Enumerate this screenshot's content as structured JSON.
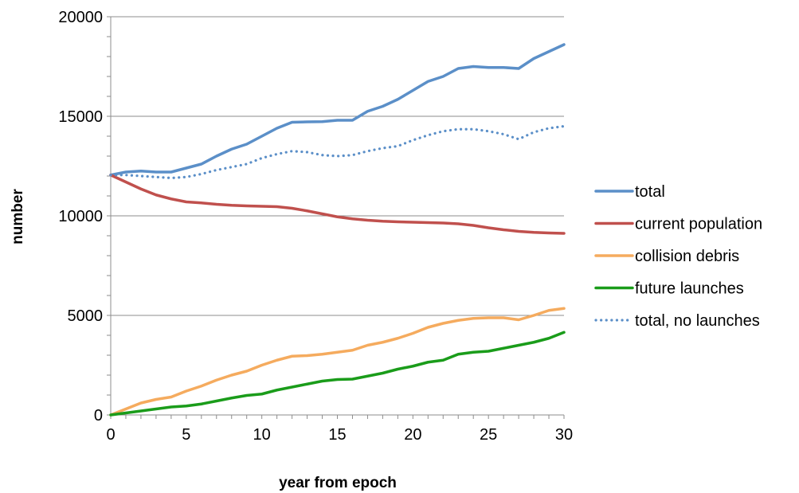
{
  "chart_data": {
    "type": "line",
    "title": "",
    "xlabel": "year from epoch",
    "ylabel": "number",
    "xlim": [
      0,
      30
    ],
    "ylim": [
      0,
      20000
    ],
    "x_ticks": [
      "0",
      "5",
      "10",
      "15",
      "20",
      "25",
      "30"
    ],
    "y_ticks": [
      "0",
      "5000",
      "10000",
      "15000",
      "20000"
    ],
    "grid": "horizontal",
    "legend_position": "right",
    "x": [
      0,
      1,
      2,
      3,
      4,
      5,
      6,
      7,
      8,
      9,
      10,
      11,
      12,
      13,
      14,
      15,
      16,
      17,
      18,
      19,
      20,
      21,
      22,
      23,
      24,
      25,
      26,
      27,
      28,
      29,
      30
    ],
    "series": [
      {
        "name": "total",
        "color": "#5b8fc8",
        "style": "solid",
        "values": [
          12050,
          12200,
          12250,
          12200,
          12200,
          12400,
          12600,
          13000,
          13350,
          13600,
          14000,
          14400,
          14700,
          14720,
          14730,
          14800,
          14800,
          15250,
          15500,
          15850,
          16300,
          16750,
          17000,
          17400,
          17500,
          17450,
          17450,
          17400,
          17900,
          18250,
          18600
        ]
      },
      {
        "name": "current population",
        "color": "#c0504d",
        "style": "solid",
        "values": [
          12050,
          11700,
          11350,
          11050,
          10850,
          10700,
          10650,
          10580,
          10530,
          10500,
          10480,
          10460,
          10380,
          10250,
          10100,
          9950,
          9850,
          9780,
          9730,
          9700,
          9680,
          9660,
          9640,
          9600,
          9520,
          9400,
          9300,
          9220,
          9170,
          9140,
          9120
        ]
      },
      {
        "name": "collision debris",
        "color": "#f5ab5e",
        "style": "solid",
        "values": [
          0,
          300,
          600,
          780,
          900,
          1200,
          1450,
          1750,
          2000,
          2200,
          2500,
          2750,
          2950,
          2980,
          3050,
          3150,
          3250,
          3500,
          3650,
          3850,
          4100,
          4400,
          4600,
          4750,
          4850,
          4880,
          4880,
          4780,
          5000,
          5250,
          5350
        ]
      },
      {
        "name": "future launches",
        "color": "#1a9c1a",
        "style": "solid",
        "values": [
          0,
          100,
          200,
          300,
          400,
          450,
          550,
          700,
          850,
          980,
          1050,
          1250,
          1400,
          1550,
          1700,
          1780,
          1800,
          1950,
          2100,
          2300,
          2450,
          2650,
          2750,
          3050,
          3150,
          3200,
          3350,
          3500,
          3650,
          3850,
          4150
        ]
      },
      {
        "name": "total, no launches",
        "color": "#5b8fc8",
        "style": "dotted",
        "values": [
          12050,
          12050,
          12000,
          11950,
          11900,
          11950,
          12100,
          12300,
          12450,
          12600,
          12900,
          13100,
          13250,
          13200,
          13050,
          13000,
          13050,
          13250,
          13400,
          13500,
          13800,
          14050,
          14250,
          14350,
          14350,
          14250,
          14100,
          13850,
          14200,
          14400,
          14500
        ]
      }
    ]
  }
}
